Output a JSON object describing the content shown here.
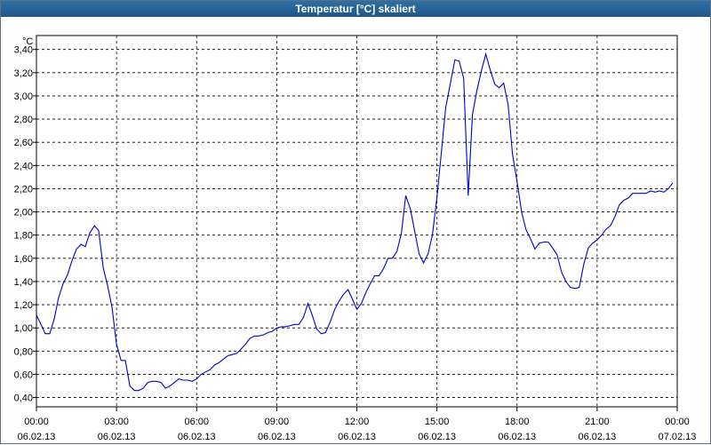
{
  "window": {
    "title": "Temperatur [°C] skaliert"
  },
  "chart_data": {
    "type": "line",
    "title": "Temperatur [°C] skaliert",
    "ylabel": "°C",
    "ylim": [
      0.32,
      3.52
    ],
    "y_ticks": [
      "0,40",
      "0,60",
      "0,80",
      "1,00",
      "1,20",
      "1,40",
      "1,60",
      "1,80",
      "2,00",
      "2,20",
      "2,40",
      "2,60",
      "2,80",
      "3,00",
      "3,20",
      "3,40"
    ],
    "x_tick_labels": [
      [
        "00:00",
        "06.02.13"
      ],
      [
        "03:00",
        "06.02.13"
      ],
      [
        "06:00",
        "06.02.13"
      ],
      [
        "09:00",
        "06.02.13"
      ],
      [
        "12:00",
        "06.02.13"
      ],
      [
        "15:00",
        "06.02.13"
      ],
      [
        "18:00",
        "06.02.13"
      ],
      [
        "21:00",
        "06.02.13"
      ],
      [
        "00:00",
        "07.02.13"
      ]
    ],
    "x_unit": "hours since 06.02.13 00:00",
    "xlim": [
      0,
      24
    ],
    "grid": true,
    "line_color": "#0000cc",
    "series": [
      {
        "points": [
          [
            0.0,
            1.11
          ],
          [
            0.17,
            1.03
          ],
          [
            0.33,
            0.95
          ],
          [
            0.5,
            0.95
          ],
          [
            0.67,
            1.08
          ],
          [
            0.83,
            1.26
          ],
          [
            1.0,
            1.38
          ],
          [
            1.17,
            1.46
          ],
          [
            1.33,
            1.58
          ],
          [
            1.5,
            1.68
          ],
          [
            1.67,
            1.72
          ],
          [
            1.83,
            1.7
          ],
          [
            2.0,
            1.82
          ],
          [
            2.17,
            1.88
          ],
          [
            2.33,
            1.84
          ],
          [
            2.5,
            1.52
          ],
          [
            2.67,
            1.36
          ],
          [
            2.83,
            1.18
          ],
          [
            3.0,
            0.86
          ],
          [
            3.17,
            0.72
          ],
          [
            3.33,
            0.72
          ],
          [
            3.5,
            0.5
          ],
          [
            3.67,
            0.46
          ],
          [
            3.83,
            0.46
          ],
          [
            4.0,
            0.48
          ],
          [
            4.17,
            0.53
          ],
          [
            4.33,
            0.54
          ],
          [
            4.5,
            0.54
          ],
          [
            4.67,
            0.53
          ],
          [
            4.83,
            0.48
          ],
          [
            5.0,
            0.5
          ],
          [
            5.17,
            0.53
          ],
          [
            5.33,
            0.56
          ],
          [
            5.5,
            0.55
          ],
          [
            5.67,
            0.55
          ],
          [
            5.83,
            0.54
          ],
          [
            6.0,
            0.56
          ],
          [
            6.17,
            0.6
          ],
          [
            6.33,
            0.62
          ],
          [
            6.5,
            0.64
          ],
          [
            6.67,
            0.68
          ],
          [
            6.83,
            0.7
          ],
          [
            7.0,
            0.73
          ],
          [
            7.17,
            0.76
          ],
          [
            7.33,
            0.77
          ],
          [
            7.5,
            0.78
          ],
          [
            7.67,
            0.82
          ],
          [
            7.83,
            0.86
          ],
          [
            8.0,
            0.91
          ],
          [
            8.17,
            0.93
          ],
          [
            8.33,
            0.93
          ],
          [
            8.5,
            0.94
          ],
          [
            8.67,
            0.96
          ],
          [
            8.83,
            0.97
          ],
          [
            9.0,
            1.0
          ],
          [
            9.17,
            1.01
          ],
          [
            9.33,
            1.01
          ],
          [
            9.5,
            1.02
          ],
          [
            9.67,
            1.03
          ],
          [
            9.83,
            1.03
          ],
          [
            10.0,
            1.09
          ],
          [
            10.17,
            1.21
          ],
          [
            10.33,
            1.11
          ],
          [
            10.5,
            0.99
          ],
          [
            10.67,
            0.95
          ],
          [
            10.83,
            0.96
          ],
          [
            11.0,
            1.05
          ],
          [
            11.17,
            1.16
          ],
          [
            11.33,
            1.23
          ],
          [
            11.5,
            1.29
          ],
          [
            11.67,
            1.33
          ],
          [
            11.83,
            1.25
          ],
          [
            12.0,
            1.16
          ],
          [
            12.17,
            1.21
          ],
          [
            12.33,
            1.3
          ],
          [
            12.5,
            1.38
          ],
          [
            12.67,
            1.45
          ],
          [
            12.83,
            1.45
          ],
          [
            13.0,
            1.51
          ],
          [
            13.17,
            1.6
          ],
          [
            13.33,
            1.6
          ],
          [
            13.5,
            1.66
          ],
          [
            13.67,
            1.82
          ],
          [
            13.83,
            2.14
          ],
          [
            14.0,
            2.03
          ],
          [
            14.17,
            1.83
          ],
          [
            14.33,
            1.64
          ],
          [
            14.5,
            1.56
          ],
          [
            14.67,
            1.64
          ],
          [
            14.83,
            1.8
          ],
          [
            15.0,
            2.12
          ],
          [
            15.17,
            2.52
          ],
          [
            15.33,
            2.9
          ],
          [
            15.5,
            3.1
          ],
          [
            15.67,
            3.31
          ],
          [
            15.83,
            3.3
          ],
          [
            16.0,
            3.15
          ],
          [
            16.17,
            2.14
          ],
          [
            16.33,
            2.84
          ],
          [
            16.5,
            3.05
          ],
          [
            16.67,
            3.22
          ],
          [
            16.83,
            3.36
          ],
          [
            17.0,
            3.22
          ],
          [
            17.17,
            3.1
          ],
          [
            17.33,
            3.07
          ],
          [
            17.5,
            3.11
          ],
          [
            17.67,
            2.92
          ],
          [
            17.83,
            2.5
          ],
          [
            18.0,
            2.26
          ],
          [
            18.17,
            2.0
          ],
          [
            18.33,
            1.85
          ],
          [
            18.5,
            1.77
          ],
          [
            18.67,
            1.68
          ],
          [
            18.83,
            1.73
          ],
          [
            19.0,
            1.74
          ],
          [
            19.17,
            1.74
          ],
          [
            19.33,
            1.69
          ],
          [
            19.5,
            1.63
          ],
          [
            19.67,
            1.48
          ],
          [
            19.83,
            1.4
          ],
          [
            20.0,
            1.35
          ],
          [
            20.17,
            1.34
          ],
          [
            20.33,
            1.35
          ],
          [
            20.5,
            1.55
          ],
          [
            20.67,
            1.69
          ],
          [
            20.83,
            1.73
          ],
          [
            21.0,
            1.76
          ],
          [
            21.17,
            1.8
          ],
          [
            21.33,
            1.85
          ],
          [
            21.5,
            1.88
          ],
          [
            21.67,
            1.96
          ],
          [
            21.83,
            2.06
          ],
          [
            22.0,
            2.1
          ],
          [
            22.17,
            2.12
          ],
          [
            22.33,
            2.16
          ],
          [
            22.5,
            2.16
          ],
          [
            22.67,
            2.16
          ],
          [
            22.83,
            2.16
          ],
          [
            23.0,
            2.18
          ],
          [
            23.17,
            2.17
          ],
          [
            23.33,
            2.18
          ],
          [
            23.5,
            2.17
          ],
          [
            23.67,
            2.2
          ],
          [
            23.83,
            2.25
          ]
        ]
      }
    ]
  }
}
